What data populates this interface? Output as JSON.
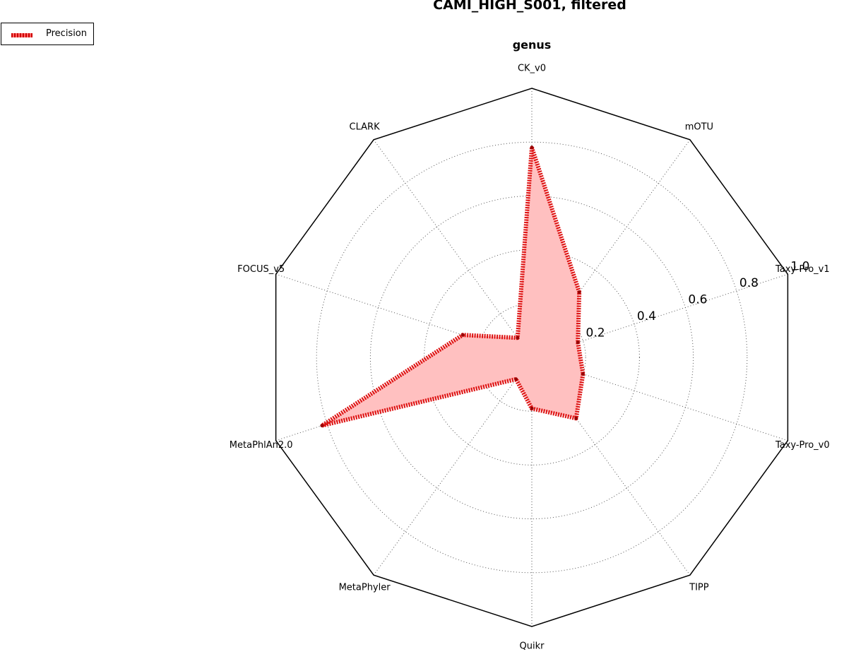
{
  "title": "CAMI_HIGH_S001, filtered",
  "subtitle": "genus",
  "legend": {
    "label": "Precision"
  },
  "colors": {
    "line": "#dd1111",
    "fill": "#ffc0c0",
    "frame": "#000000",
    "grid": "#555555"
  },
  "chart_data": {
    "type": "radar",
    "title": "CAMI_HIGH_S001, filtered",
    "subtitle": "genus",
    "axes": [
      "CK_v0",
      "mOTU",
      "Taxy-Pro_v1",
      "Taxy-Pro_v0",
      "TIPP",
      "Quikr",
      "MetaPhyler",
      "MetaPhlAn2.0",
      "FOCUS_v5",
      "CLARK"
    ],
    "range": [
      0,
      1.0
    ],
    "ticks": [
      0.2,
      0.4,
      0.6,
      0.8,
      1.0
    ],
    "tick_labels": [
      "0.2",
      "0.4",
      "0.6",
      "0.8",
      "1.0"
    ],
    "grid": true,
    "legend_position": "top-left",
    "series": [
      {
        "name": "Precision",
        "values": [
          0.78,
          0.3,
          0.18,
          0.2,
          0.28,
          0.19,
          0.1,
          0.82,
          0.27,
          0.09
        ]
      }
    ]
  }
}
